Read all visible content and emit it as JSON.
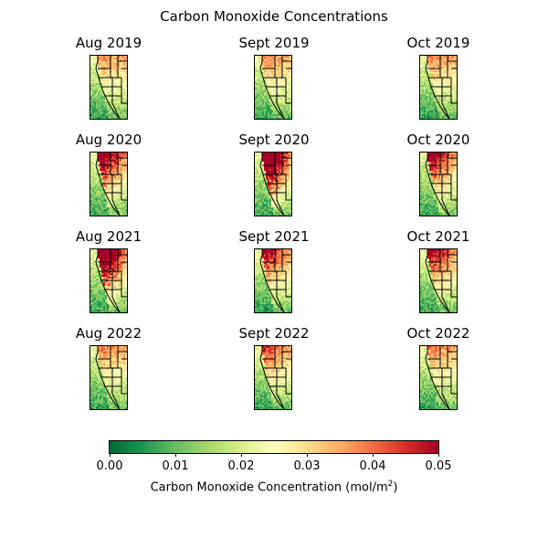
{
  "chart_data": {
    "type": "heatmap",
    "title": "Carbon Monoxide Concentrations",
    "panels": [
      {
        "label": "Aug 2019",
        "intensity": 0.05
      },
      {
        "label": "Sept 2019",
        "intensity": 0.07
      },
      {
        "label": "Oct 2019",
        "intensity": 0.1
      },
      {
        "label": "Aug 2020",
        "intensity": 0.55
      },
      {
        "label": "Sept 2020",
        "intensity": 0.95
      },
      {
        "label": "Oct 2020",
        "intensity": 0.45
      },
      {
        "label": "Aug 2021",
        "intensity": 0.85
      },
      {
        "label": "Sept 2021",
        "intensity": 0.35
      },
      {
        "label": "Oct 2021",
        "intensity": 0.4
      },
      {
        "label": "Aug 2022",
        "intensity": 0.1
      },
      {
        "label": "Sept 2022",
        "intensity": 0.2
      },
      {
        "label": "Oct 2022",
        "intensity": 0.1
      }
    ],
    "colorbar": {
      "min": 0.0,
      "max": 0.05,
      "ticks": [
        "0.00",
        "0.01",
        "0.02",
        "0.03",
        "0.04",
        "0.05"
      ],
      "label": "Carbon Monoxide Concentration (mol/m",
      "label_sup": "2",
      "label_end": ")",
      "colormap": [
        "#006837",
        "#1a9850",
        "#66bd63",
        "#a6d96a",
        "#d9ef8b",
        "#ffffbf",
        "#fee08b",
        "#fdae61",
        "#f46d43",
        "#d73027",
        "#a50026"
      ]
    }
  }
}
